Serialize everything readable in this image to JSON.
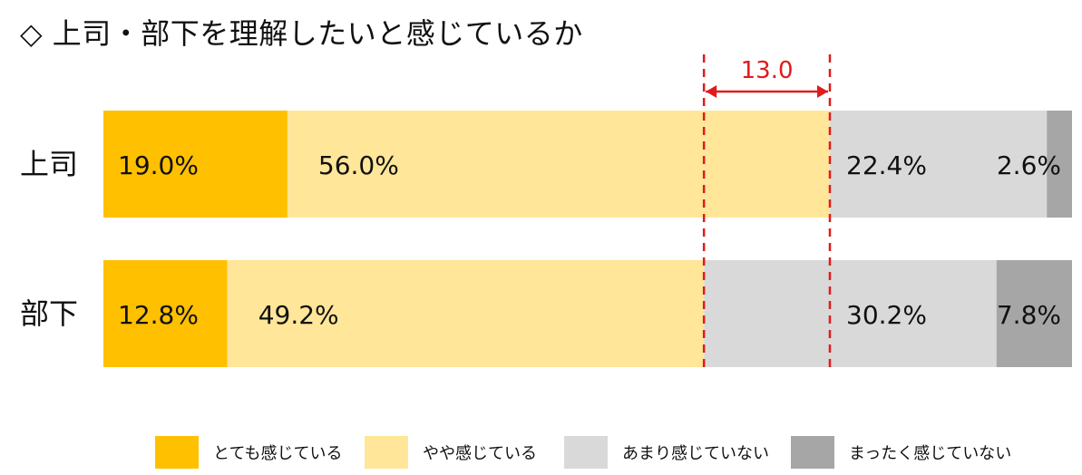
{
  "title": "◇ 上司・部下を理解したいと感じているか",
  "chart_data": {
    "type": "bar",
    "orientation": "horizontal",
    "stacked": true,
    "xlim": [
      0,
      100
    ],
    "categories": [
      "上司",
      "部下"
    ],
    "series": [
      {
        "name": "とても感じている",
        "color": "#FFC000",
        "values": [
          19.0,
          12.8
        ],
        "labels": [
          "19.0%",
          "12.8%"
        ]
      },
      {
        "name": "やや感じている",
        "color": "#FFE699",
        "values": [
          56.0,
          49.2
        ],
        "labels": [
          "56.0%",
          "49.2%"
        ]
      },
      {
        "name": "あまり感じていない",
        "color": "#D9D9D9",
        "values": [
          22.4,
          30.2
        ],
        "labels": [
          "22.4%",
          "30.2%"
        ]
      },
      {
        "name": "まったく感じていない",
        "color": "#A6A6A6",
        "values": [
          2.6,
          7.8
        ],
        "labels": [
          "2.6%",
          "7.8%"
        ]
      }
    ],
    "annotation": {
      "text": "13.0",
      "color": "#E01B1B",
      "from_value": 62.0,
      "to_value": 75.0
    },
    "legend_position": "bottom"
  }
}
